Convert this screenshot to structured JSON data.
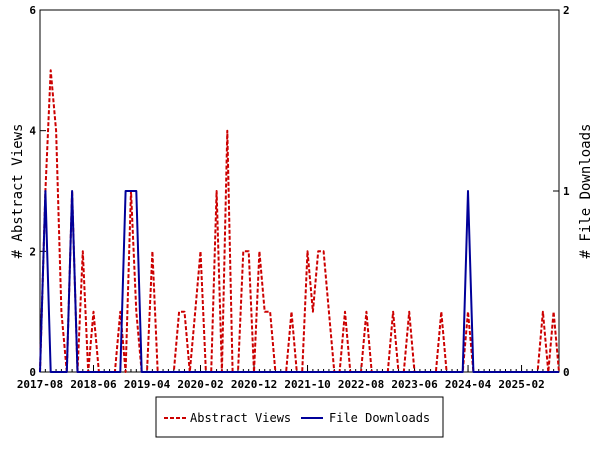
{
  "chart_data": {
    "type": "line",
    "title": "",
    "x_tick_labels": [
      "2017-08",
      "2018-06",
      "2019-04",
      "2020-02",
      "2020-12",
      "2021-10",
      "2022-08",
      "2023-06",
      "2024-04",
      "2025-02"
    ],
    "y_left": {
      "label": "# Abstract Views",
      "ylim": [
        0,
        6
      ],
      "ticks": [
        "0",
        "2",
        "4",
        "6"
      ]
    },
    "y_right": {
      "label": "# File Downloads",
      "ylim": [
        0,
        2
      ],
      "ticks": [
        "0",
        "1",
        "2"
      ]
    },
    "x_range": [
      "2017-08",
      "2025-09"
    ],
    "grid": false,
    "legend": "bottom-center",
    "series": [
      {
        "name": "Abstract Views",
        "axis": "left",
        "color": "#cc0000",
        "dash": "dashed",
        "points": [
          [
            "2017-08",
            0
          ],
          [
            "2017-09",
            3
          ],
          [
            "2017-10",
            5
          ],
          [
            "2017-11",
            4
          ],
          [
            "2017-12",
            1
          ],
          [
            "2018-01",
            0
          ],
          [
            "2018-02",
            3
          ],
          [
            "2018-03",
            0
          ],
          [
            "2018-04",
            2
          ],
          [
            "2018-05",
            0
          ],
          [
            "2018-06",
            1
          ],
          [
            "2018-07",
            0
          ],
          [
            "2018-08",
            0
          ],
          [
            "2018-09",
            0
          ],
          [
            "2018-10",
            0
          ],
          [
            "2018-11",
            1
          ],
          [
            "2018-12",
            0
          ],
          [
            "2019-01",
            3
          ],
          [
            "2019-02",
            1
          ],
          [
            "2019-03",
            0
          ],
          [
            "2019-04",
            0
          ],
          [
            "2019-05",
            2
          ],
          [
            "2019-06",
            0
          ],
          [
            "2019-07",
            0
          ],
          [
            "2019-08",
            0
          ],
          [
            "2019-09",
            0
          ],
          [
            "2019-10",
            1
          ],
          [
            "2019-11",
            1
          ],
          [
            "2019-12",
            0
          ],
          [
            "2020-01",
            1
          ],
          [
            "2020-02",
            2
          ],
          [
            "2020-03",
            0
          ],
          [
            "2020-04",
            0
          ],
          [
            "2020-05",
            3
          ],
          [
            "2020-06",
            0
          ],
          [
            "2020-07",
            4
          ],
          [
            "2020-08",
            0
          ],
          [
            "2020-09",
            0
          ],
          [
            "2020-10",
            2
          ],
          [
            "2020-11",
            2
          ],
          [
            "2020-12",
            0
          ],
          [
            "2021-01",
            2
          ],
          [
            "2021-02",
            1
          ],
          [
            "2021-03",
            1
          ],
          [
            "2021-04",
            0
          ],
          [
            "2021-05",
            0
          ],
          [
            "2021-06",
            0
          ],
          [
            "2021-07",
            1
          ],
          [
            "2021-08",
            0
          ],
          [
            "2021-09",
            0
          ],
          [
            "2021-10",
            2
          ],
          [
            "2021-11",
            1
          ],
          [
            "2021-12",
            2
          ],
          [
            "2022-01",
            2
          ],
          [
            "2022-02",
            1
          ],
          [
            "2022-03",
            0
          ],
          [
            "2022-04",
            0
          ],
          [
            "2022-05",
            1
          ],
          [
            "2022-06",
            0
          ],
          [
            "2022-07",
            0
          ],
          [
            "2022-08",
            0
          ],
          [
            "2022-09",
            1
          ],
          [
            "2022-10",
            0
          ],
          [
            "2022-11",
            0
          ],
          [
            "2022-12",
            0
          ],
          [
            "2023-01",
            0
          ],
          [
            "2023-02",
            1
          ],
          [
            "2023-03",
            0
          ],
          [
            "2023-04",
            0
          ],
          [
            "2023-05",
            1
          ],
          [
            "2023-06",
            0
          ],
          [
            "2023-07",
            0
          ],
          [
            "2023-08",
            0
          ],
          [
            "2023-09",
            0
          ],
          [
            "2023-10",
            0
          ],
          [
            "2023-11",
            1
          ],
          [
            "2023-12",
            0
          ],
          [
            "2024-01",
            0
          ],
          [
            "2024-02",
            0
          ],
          [
            "2024-03",
            0
          ],
          [
            "2024-04",
            1
          ],
          [
            "2024-05",
            0
          ],
          [
            "2024-06",
            0
          ],
          [
            "2024-07",
            0
          ],
          [
            "2024-08",
            0
          ],
          [
            "2024-09",
            0
          ],
          [
            "2024-10",
            0
          ],
          [
            "2024-11",
            0
          ],
          [
            "2024-12",
            0
          ],
          [
            "2025-01",
            0
          ],
          [
            "2025-02",
            0
          ],
          [
            "2025-03",
            0
          ],
          [
            "2025-04",
            0
          ],
          [
            "2025-05",
            0
          ],
          [
            "2025-06",
            1
          ],
          [
            "2025-07",
            0
          ],
          [
            "2025-08",
            1
          ],
          [
            "2025-09",
            0
          ]
        ]
      },
      {
        "name": "File Downloads",
        "axis": "right",
        "color": "#000099",
        "dash": "solid",
        "points": [
          [
            "2017-08",
            0
          ],
          [
            "2017-09",
            1
          ],
          [
            "2017-10",
            0
          ],
          [
            "2017-11",
            0
          ],
          [
            "2017-12",
            0
          ],
          [
            "2018-01",
            0
          ],
          [
            "2018-02",
            1
          ],
          [
            "2018-03",
            0
          ],
          [
            "2018-04",
            0
          ],
          [
            "2018-05",
            0
          ],
          [
            "2018-06",
            0
          ],
          [
            "2018-07",
            0
          ],
          [
            "2018-08",
            0
          ],
          [
            "2018-09",
            0
          ],
          [
            "2018-10",
            0
          ],
          [
            "2018-11",
            0
          ],
          [
            "2018-12",
            1
          ],
          [
            "2019-01",
            1
          ],
          [
            "2019-02",
            1
          ],
          [
            "2019-03",
            0
          ],
          [
            "2019-04",
            0
          ],
          [
            "2019-05",
            0
          ],
          [
            "2019-06",
            0
          ],
          [
            "2019-07",
            0
          ],
          [
            "2019-08",
            0
          ],
          [
            "2019-09",
            0
          ],
          [
            "2019-10",
            0
          ],
          [
            "2019-11",
            0
          ],
          [
            "2019-12",
            0
          ],
          [
            "2020-01",
            0
          ],
          [
            "2020-02",
            0
          ],
          [
            "2020-03",
            0
          ],
          [
            "2020-04",
            0
          ],
          [
            "2020-05",
            0
          ],
          [
            "2020-06",
            0
          ],
          [
            "2020-07",
            0
          ],
          [
            "2020-08",
            0
          ],
          [
            "2020-09",
            0
          ],
          [
            "2020-10",
            0
          ],
          [
            "2020-11",
            0
          ],
          [
            "2020-12",
            0
          ],
          [
            "2021-01",
            0
          ],
          [
            "2021-02",
            0
          ],
          [
            "2021-03",
            0
          ],
          [
            "2021-04",
            0
          ],
          [
            "2021-05",
            0
          ],
          [
            "2021-06",
            0
          ],
          [
            "2021-07",
            0
          ],
          [
            "2021-08",
            0
          ],
          [
            "2021-09",
            0
          ],
          [
            "2021-10",
            0
          ],
          [
            "2021-11",
            0
          ],
          [
            "2021-12",
            0
          ],
          [
            "2022-01",
            0
          ],
          [
            "2022-02",
            0
          ],
          [
            "2022-03",
            0
          ],
          [
            "2022-04",
            0
          ],
          [
            "2022-05",
            0
          ],
          [
            "2022-06",
            0
          ],
          [
            "2022-07",
            0
          ],
          [
            "2022-08",
            0
          ],
          [
            "2022-09",
            0
          ],
          [
            "2022-10",
            0
          ],
          [
            "2022-11",
            0
          ],
          [
            "2022-12",
            0
          ],
          [
            "2023-01",
            0
          ],
          [
            "2023-02",
            0
          ],
          [
            "2023-03",
            0
          ],
          [
            "2023-04",
            0
          ],
          [
            "2023-05",
            0
          ],
          [
            "2023-06",
            0
          ],
          [
            "2023-07",
            0
          ],
          [
            "2023-08",
            0
          ],
          [
            "2023-09",
            0
          ],
          [
            "2023-10",
            0
          ],
          [
            "2023-11",
            0
          ],
          [
            "2023-12",
            0
          ],
          [
            "2024-01",
            0
          ],
          [
            "2024-02",
            0
          ],
          [
            "2024-03",
            0
          ],
          [
            "2024-04",
            1
          ],
          [
            "2024-05",
            0
          ],
          [
            "2024-06",
            0
          ],
          [
            "2024-07",
            0
          ],
          [
            "2024-08",
            0
          ],
          [
            "2024-09",
            0
          ],
          [
            "2024-10",
            0
          ],
          [
            "2024-11",
            0
          ],
          [
            "2024-12",
            0
          ],
          [
            "2025-01",
            0
          ],
          [
            "2025-02",
            0
          ],
          [
            "2025-03",
            0
          ],
          [
            "2025-04",
            0
          ],
          [
            "2025-05",
            0
          ],
          [
            "2025-06",
            0
          ],
          [
            "2025-07",
            0
          ],
          [
            "2025-08",
            0
          ],
          [
            "2025-09",
            0
          ]
        ]
      }
    ]
  }
}
